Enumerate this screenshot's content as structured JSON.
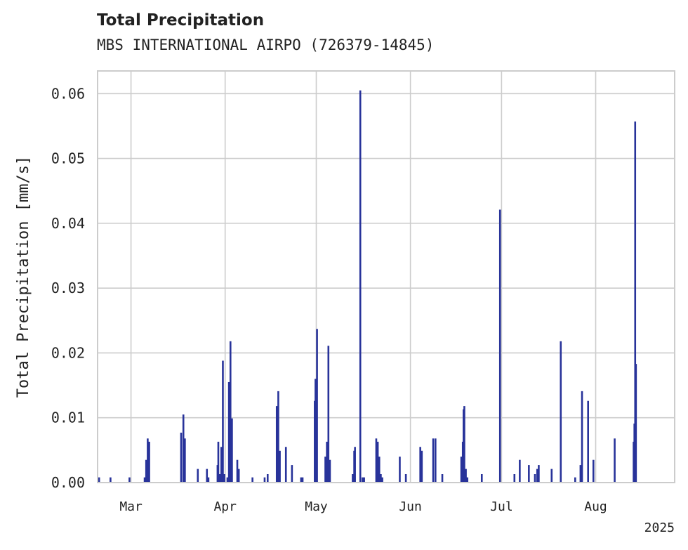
{
  "chart_data": {
    "type": "bar",
    "title": "Total Precipitation",
    "subtitle": "MBS INTERNATIONAL AIRPO (726379-14845)",
    "ylabel": "Total Precipitation [mm/s]",
    "xlabel": "",
    "year_label": "2025",
    "ylim": [
      0,
      0.0635
    ],
    "yticks": [
      "0.00",
      "0.01",
      "0.02",
      "0.03",
      "0.04",
      "0.05",
      "0.06"
    ],
    "xlim": [
      "2025-02-18",
      "2025-08-27"
    ],
    "xticks": [
      {
        "label": "Mar",
        "date": "2025-03-01"
      },
      {
        "label": "Apr",
        "date": "2025-04-01"
      },
      {
        "label": "May",
        "date": "2025-05-01"
      },
      {
        "label": "Jun",
        "date": "2025-06-01"
      },
      {
        "label": "Jul",
        "date": "2025-07-01"
      },
      {
        "label": "Aug",
        "date": "2025-08-01"
      }
    ],
    "grid": true,
    "color": "#28339a",
    "points": [
      [
        "2025-02-18T12:00",
        0.0008
      ],
      [
        "2025-02-22T06:00",
        0.0008
      ],
      [
        "2025-02-28T12:00",
        0.0008
      ],
      [
        "2025-03-05T12:00",
        0.0008
      ],
      [
        "2025-03-06T00:00",
        0.0035
      ],
      [
        "2025-03-06T12:00",
        0.0068
      ],
      [
        "2025-03-07T00:00",
        0.0063
      ],
      [
        "2025-03-17T12:00",
        0.0077
      ],
      [
        "2025-03-18T06:00",
        0.0105
      ],
      [
        "2025-03-18T18:00",
        0.0068
      ],
      [
        "2025-03-23T00:00",
        0.0021
      ],
      [
        "2025-03-26T00:00",
        0.0021
      ],
      [
        "2025-03-26T12:00",
        0.0008
      ],
      [
        "2025-03-29T12:00",
        0.0027
      ],
      [
        "2025-03-29T18:00",
        0.0063
      ],
      [
        "2025-03-30T06:00",
        0.0013
      ],
      [
        "2025-03-30T18:00",
        0.0055
      ],
      [
        "2025-03-31T06:00",
        0.0188
      ],
      [
        "2025-03-31T18:00",
        0.0013
      ],
      [
        "2025-04-01T18:00",
        0.0008
      ],
      [
        "2025-04-02T06:00",
        0.0155
      ],
      [
        "2025-04-02T18:00",
        0.0218
      ],
      [
        "2025-04-03T06:00",
        0.0099
      ],
      [
        "2025-04-05T00:00",
        0.0035
      ],
      [
        "2025-04-05T12:00",
        0.0021
      ],
      [
        "2025-04-10T00:00",
        0.0008
      ],
      [
        "2025-04-14T00:00",
        0.0008
      ],
      [
        "2025-04-15T00:00",
        0.0013
      ],
      [
        "2025-04-18T00:00",
        0.0118
      ],
      [
        "2025-04-18T12:00",
        0.0141
      ],
      [
        "2025-04-19T00:00",
        0.0049
      ],
      [
        "2025-04-21T00:00",
        0.0055
      ],
      [
        "2025-04-23T00:00",
        0.0027
      ],
      [
        "2025-04-26T00:00",
        0.0008
      ],
      [
        "2025-04-26T12:00",
        0.0008
      ],
      [
        "2025-04-30T12:00",
        0.0126
      ],
      [
        "2025-04-30T18:00",
        0.016
      ],
      [
        "2025-05-01T06:00",
        0.0237
      ],
      [
        "2025-05-04T00:00",
        0.004
      ],
      [
        "2025-05-04T12:00",
        0.0063
      ],
      [
        "2025-05-05T00:00",
        0.0211
      ],
      [
        "2025-05-05T12:00",
        0.0035
      ],
      [
        "2025-05-13T00:00",
        0.0013
      ],
      [
        "2025-05-13T12:00",
        0.0049
      ],
      [
        "2025-05-13T18:00",
        0.0055
      ],
      [
        "2025-05-15T12:00",
        0.0605
      ],
      [
        "2025-05-16T06:00",
        0.0008
      ],
      [
        "2025-05-16T18:00",
        0.0008
      ],
      [
        "2025-05-20T18:00",
        0.0068
      ],
      [
        "2025-05-21T06:00",
        0.0063
      ],
      [
        "2025-05-21T18:00",
        0.004
      ],
      [
        "2025-05-22T06:00",
        0.0013
      ],
      [
        "2025-05-22T18:00",
        0.0008
      ],
      [
        "2025-05-28T12:00",
        0.004
      ],
      [
        "2025-05-30T12:00",
        0.0013
      ],
      [
        "2025-06-04T06:00",
        0.0055
      ],
      [
        "2025-06-04T18:00",
        0.0049
      ],
      [
        "2025-06-08T12:00",
        0.0068
      ],
      [
        "2025-06-09T06:00",
        0.0068
      ],
      [
        "2025-06-11T12:00",
        0.0013
      ],
      [
        "2025-06-17T18:00",
        0.004
      ],
      [
        "2025-06-18T06:00",
        0.0063
      ],
      [
        "2025-06-18T12:00",
        0.0113
      ],
      [
        "2025-06-18T18:00",
        0.0118
      ],
      [
        "2025-06-19T06:00",
        0.0021
      ],
      [
        "2025-06-19T18:00",
        0.0008
      ],
      [
        "2025-06-24T12:00",
        0.0013
      ],
      [
        "2025-06-30T12:00",
        0.0421
      ],
      [
        "2025-07-05T06:00",
        0.0013
      ],
      [
        "2025-07-07T00:00",
        0.0035
      ],
      [
        "2025-07-10T00:00",
        0.0027
      ],
      [
        "2025-07-12T00:00",
        0.0013
      ],
      [
        "2025-07-12T18:00",
        0.0021
      ],
      [
        "2025-07-13T06:00",
        0.0027
      ],
      [
        "2025-07-17T12:00",
        0.0021
      ],
      [
        "2025-07-20T12:00",
        0.0218
      ],
      [
        "2025-07-25T06:00",
        0.0008
      ],
      [
        "2025-07-27T00:00",
        0.0027
      ],
      [
        "2025-07-27T12:00",
        0.0141
      ],
      [
        "2025-07-29T12:00",
        0.0126
      ],
      [
        "2025-07-31T06:00",
        0.0035
      ],
      [
        "2025-08-07T06:00",
        0.0068
      ],
      [
        "2025-08-13T12:00",
        0.0063
      ],
      [
        "2025-08-13T18:00",
        0.0091
      ],
      [
        "2025-08-14T00:00",
        0.0557
      ],
      [
        "2025-08-14T06:00",
        0.0183
      ]
    ]
  }
}
